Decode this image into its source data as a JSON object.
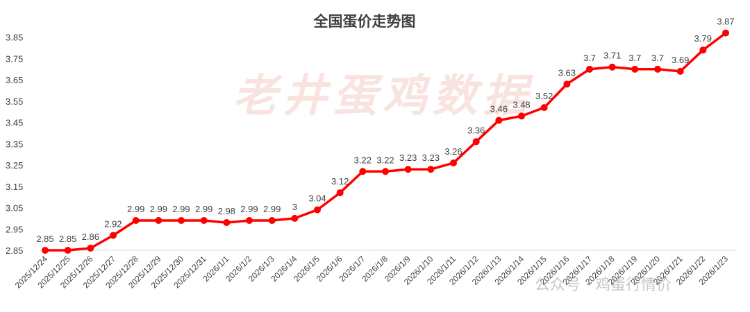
{
  "watermarks": {
    "center": "老井蛋鸡数据",
    "bottom": "公众号 · 鸡蛋行情价"
  },
  "chart_data": {
    "type": "line",
    "title": "全国蛋价走势图",
    "xlabel": "",
    "ylabel": "",
    "ylim": [
      2.85,
      3.95
    ],
    "yticks": [
      2.85,
      2.95,
      3.05,
      3.15,
      3.25,
      3.35,
      3.45,
      3.55,
      3.65,
      3.75,
      3.85
    ],
    "grid": false,
    "legend": "none",
    "line_color": "#ff0000",
    "categories": [
      "2025/12/24",
      "2025/12/25",
      "2025/12/26",
      "2025/12/27",
      "2025/12/28",
      "2025/12/29",
      "2025/12/30",
      "2025/12/31",
      "2026/1/1",
      "2026/1/2",
      "2026/1/3",
      "2026/1/4",
      "2026/1/5",
      "2026/1/6",
      "2026/1/7",
      "2026/1/8",
      "2026/1/9",
      "2026/1/10",
      "2026/1/11",
      "2026/1/12",
      "2026/1/13",
      "2026/1/14",
      "2026/1/15",
      "2026/1/16",
      "2026/1/17",
      "2026/1/18",
      "2026/1/19",
      "2026/1/20",
      "2026/1/21",
      "2026/1/22",
      "2026/1/23"
    ],
    "values": [
      2.85,
      2.85,
      2.86,
      2.92,
      2.99,
      2.99,
      2.99,
      2.99,
      2.98,
      2.99,
      2.99,
      3,
      3.04,
      3.12,
      3.22,
      3.22,
      3.23,
      3.23,
      3.26,
      3.36,
      3.46,
      3.48,
      3.52,
      3.63,
      3.7,
      3.71,
      3.7,
      3.7,
      3.69,
      3.79,
      3.87
    ]
  }
}
